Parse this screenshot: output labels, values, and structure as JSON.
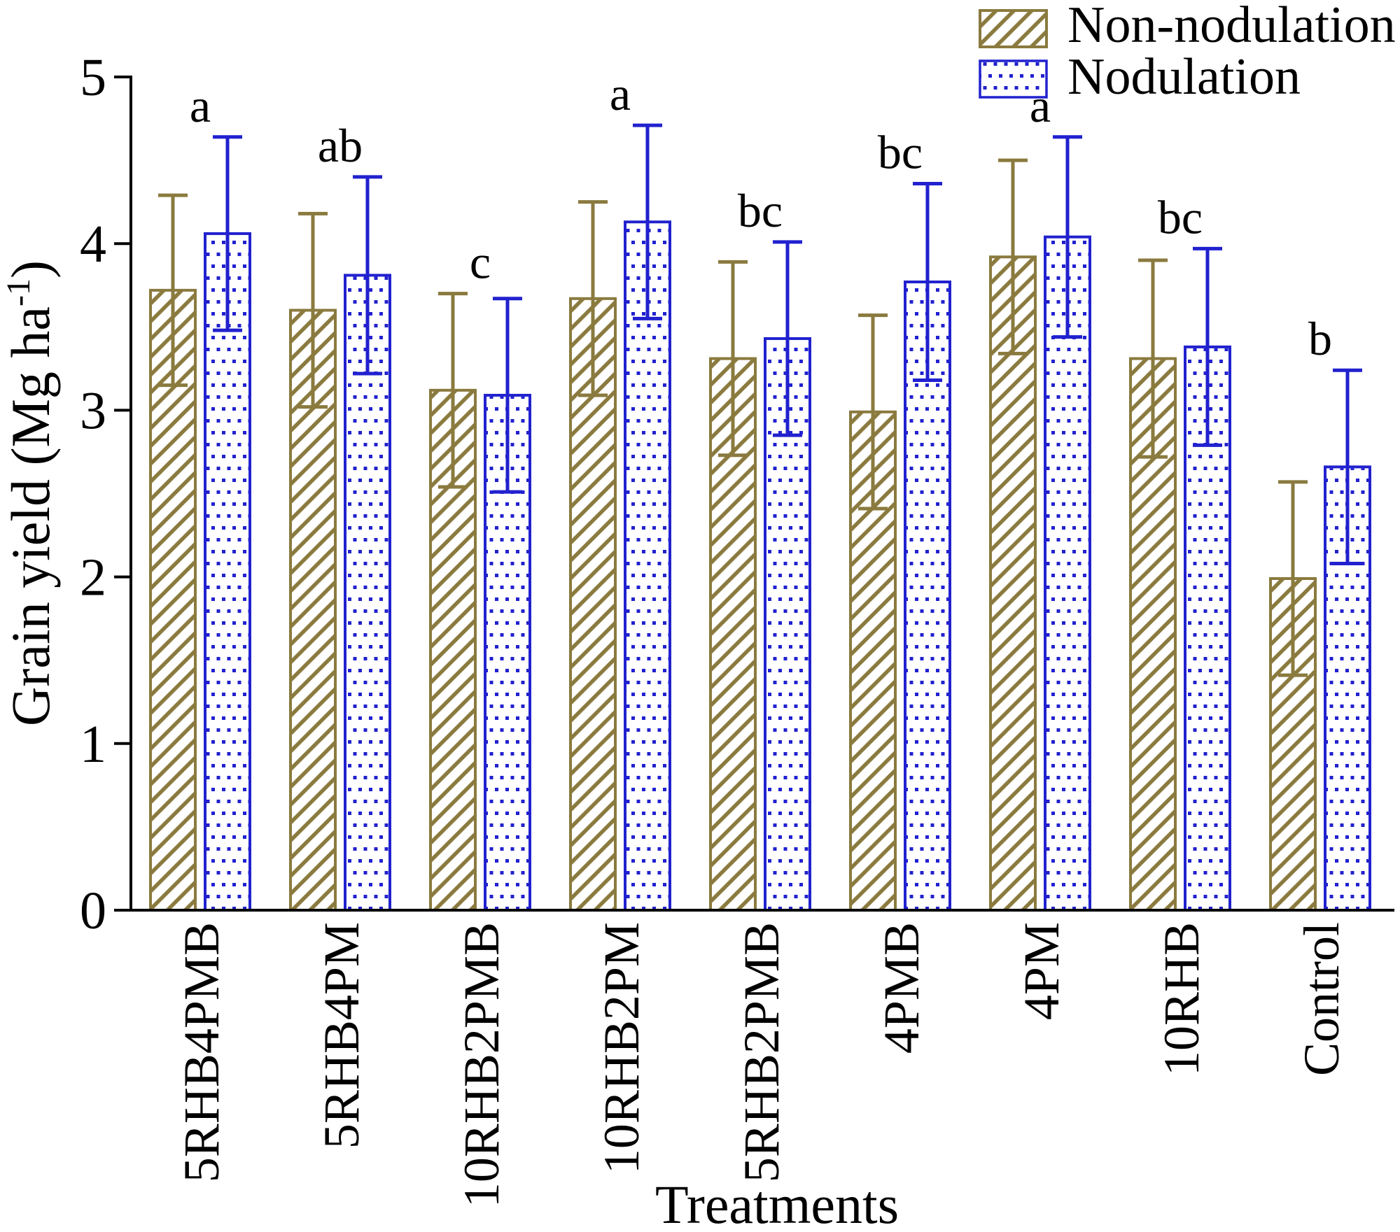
{
  "figure": {
    "ylabel_prefix": "Grain yield (Mg ha",
    "ylabel_sup": "-1",
    "ylabel_suffix": ")",
    "xlabel": "Treatments"
  },
  "legend": [
    {
      "label": "Non-nodulation",
      "swatch": "olive-diagonal-hatch-swatch"
    },
    {
      "label": "Nodulation",
      "swatch": "blue-dots-swatch"
    }
  ],
  "colors": {
    "non_nodulation": "#8a7a3e",
    "nodulation": "#2121cf",
    "axis": "#000000"
  },
  "chart_data": {
    "type": "bar",
    "title": "",
    "xlabel": "Treatments",
    "ylabel": "Grain yield (Mg ha^-1)",
    "ylim": [
      0,
      5
    ],
    "yticks": [
      0,
      1,
      2,
      3,
      4,
      5
    ],
    "grid": false,
    "legend_position": "upper right",
    "categories": [
      "5RHB4PMB",
      "5RHB4PM",
      "10RHB2PMB",
      "10RHB2PM",
      "5RHB2PMB",
      "4PMB",
      "4PM",
      "10RHB",
      "Control"
    ],
    "series": [
      {
        "name": "Non-nodulation",
        "pattern": "diagonal-hatch",
        "color": "#8a7a3e",
        "values": [
          3.72,
          3.6,
          3.12,
          3.67,
          3.31,
          2.99,
          3.92,
          3.31,
          1.99
        ],
        "errors": [
          0.57,
          0.58,
          0.58,
          0.58,
          0.58,
          0.58,
          0.58,
          0.59,
          0.58
        ]
      },
      {
        "name": "Nodulation",
        "pattern": "dots",
        "color": "#2121cf",
        "values": [
          4.06,
          3.81,
          3.09,
          4.13,
          3.43,
          3.77,
          4.04,
          3.38,
          2.66
        ],
        "errors": [
          0.58,
          0.59,
          0.58,
          0.58,
          0.58,
          0.59,
          0.6,
          0.59,
          0.58
        ]
      }
    ],
    "sig_letters": [
      "a",
      "ab",
      "c",
      "a",
      "bc",
      "bc",
      "a",
      "bc",
      "b"
    ]
  }
}
